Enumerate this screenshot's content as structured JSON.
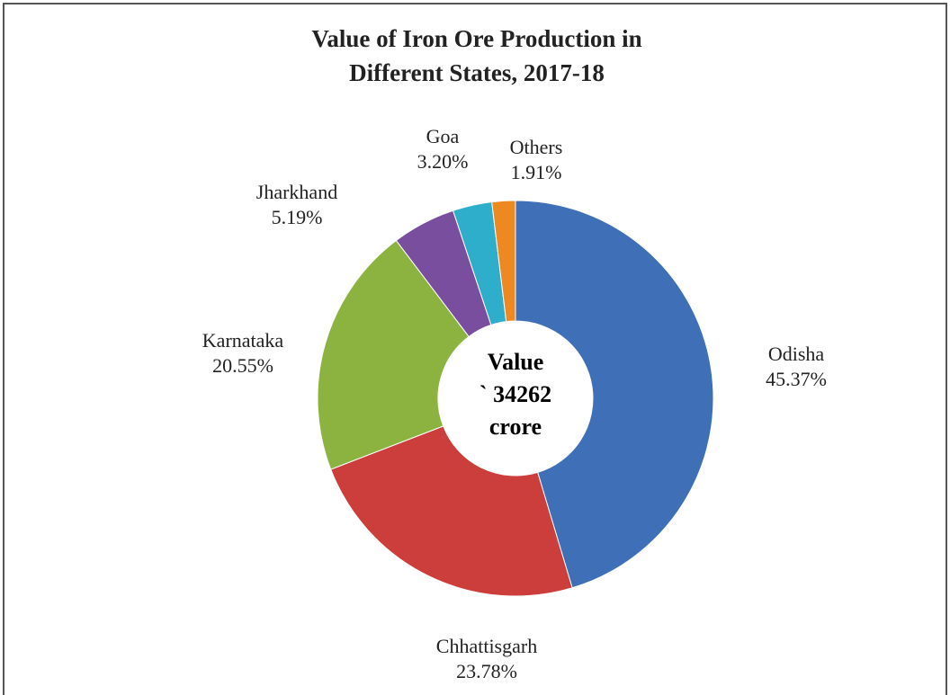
{
  "chart_data": {
    "type": "donut",
    "title": [
      "Value of  Iron Ore Production in",
      "Different States, 2017-18"
    ],
    "center_label": [
      "Value",
      "` 34262",
      "crore"
    ],
    "categories": [
      "Odisha",
      "Chhattisgarh",
      "Karnataka",
      "Jharkhand",
      "Goa",
      "Others"
    ],
    "values": [
      45.37,
      23.78,
      20.55,
      5.19,
      3.2,
      1.91
    ],
    "value_labels": [
      "45.37%",
      "23.78%",
      "20.55%",
      "5.19%",
      "3.20%",
      "1.91%"
    ],
    "colors": [
      "#3f6fb6",
      "#cc3e3b",
      "#8cb340",
      "#7a4e9e",
      "#2eaecb",
      "#ee8820"
    ]
  }
}
